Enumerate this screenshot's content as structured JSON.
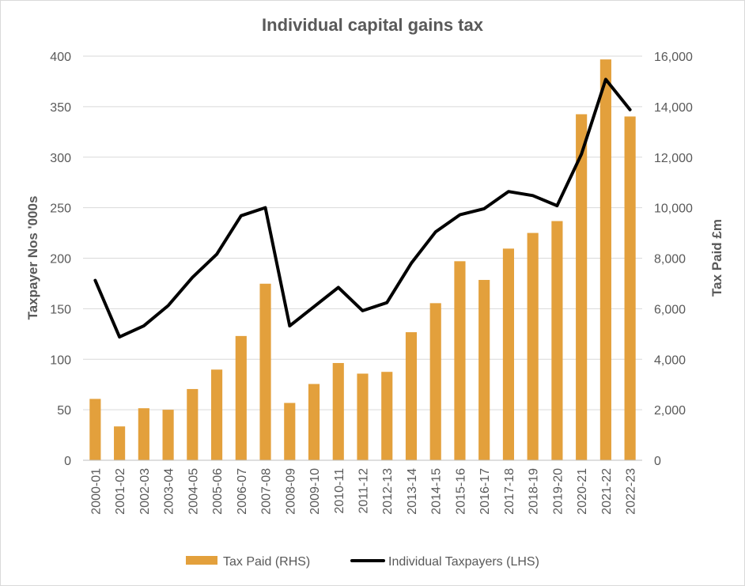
{
  "chart_data": {
    "type": "bar+line",
    "title": "Individual capital gains tax",
    "categories": [
      "2000-01",
      "2001-02",
      "2002-03",
      "2003-04",
      "2004-05",
      "2005-06",
      "2006-07",
      "2007-08",
      "2008-09",
      "2009-10",
      "2010-11",
      "2011-12",
      "2012-13",
      "2013-14",
      "2014-15",
      "2015-16",
      "2016-17",
      "2017-18",
      "2018-19",
      "2019-20",
      "2020-21",
      "2021-22",
      "2022-23"
    ],
    "series": [
      {
        "name": "Tax Paid (RHS)",
        "type": "bar",
        "axis": "right",
        "color": "#e3a03c",
        "values": [
          2430,
          1340,
          2060,
          2000,
          2820,
          3590,
          4920,
          6990,
          2270,
          3020,
          3850,
          3430,
          3500,
          5070,
          6220,
          7880,
          7140,
          8380,
          9000,
          9470,
          13700,
          15870,
          13610
        ]
      },
      {
        "name": "Individual Taxpayers (LHS)",
        "type": "line",
        "axis": "left",
        "color": "#000000",
        "values": [
          178,
          122,
          133,
          153,
          181,
          204,
          242,
          250,
          133,
          152,
          171,
          148,
          156,
          195,
          226,
          243,
          249,
          266,
          262,
          252,
          303,
          377,
          347
        ]
      }
    ],
    "yleft": {
      "label": "Taxpayer Nos '000s",
      "ylim": [
        0,
        400
      ],
      "ticks": [
        "0",
        "50",
        "100",
        "150",
        "200",
        "250",
        "300",
        "350",
        "400"
      ]
    },
    "yright": {
      "label": "Tax Paid £m",
      "ylim": [
        0,
        16000
      ],
      "ticks": [
        "0",
        "2,000",
        "4,000",
        "6,000",
        "8,000",
        "10,000",
        "12,000",
        "14,000",
        "16,000"
      ]
    },
    "grid": true,
    "legend_position": "bottom"
  }
}
